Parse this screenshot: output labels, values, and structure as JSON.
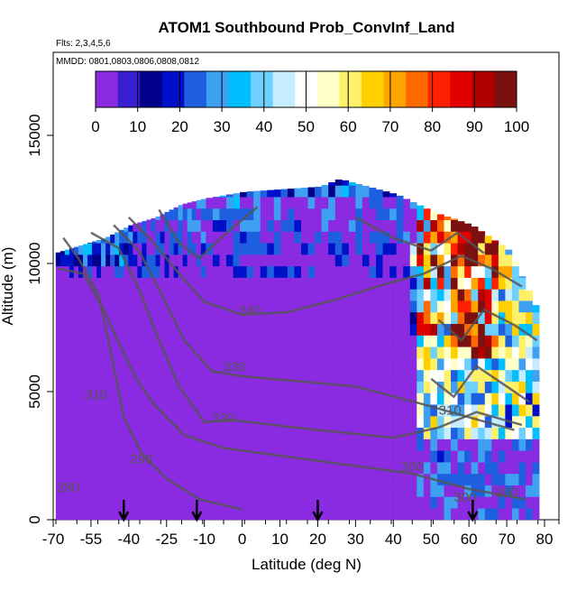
{
  "chart_data": {
    "type": "heatmap",
    "title": "ATOM1 Southbound Prob_ConvInf_Land",
    "subtitle_flights": "Flts: 2,3,4,5,6",
    "subtitle_dates": "MMDD: 0801,0803,0806,0808,0812",
    "xlabel": "Latitude (deg N)",
    "ylabel": "Altitude (m)",
    "xlim": [
      -70,
      80
    ],
    "ylim": [
      0,
      17000
    ],
    "x_ticks_major": [
      "-70",
      "-55",
      "-40",
      "-25",
      "-10",
      "0",
      "10",
      "20",
      "30",
      "40",
      "50",
      "60",
      "70",
      "80"
    ],
    "x_tick_values": [
      -70,
      -55,
      -40,
      -25,
      -10,
      0,
      10,
      20,
      30,
      40,
      50,
      60,
      70,
      80
    ],
    "y_ticks": [
      "0",
      "5000",
      "10000",
      "15000"
    ],
    "y_tick_values": [
      0,
      5000,
      10000,
      15000
    ],
    "colorbar": {
      "ticks": [
        "0",
        "10",
        "20",
        "30",
        "40",
        "50",
        "60",
        "70",
        "80",
        "90",
        "100"
      ],
      "range": [
        0,
        100
      ],
      "colors": [
        "#8a2be2",
        "#3a1fd0",
        "#00008b",
        "#0010c8",
        "#1e5fe0",
        "#3f9ff0",
        "#00bfff",
        "#6ed0ff",
        "#c6ecff",
        "#ffffff",
        "#ffffc8",
        "#fff06a",
        "#ffd000",
        "#ffa500",
        "#ff6a00",
        "#ff2000",
        "#e00000",
        "#b00000",
        "#7a1010"
      ]
    },
    "contours": [
      {
        "label": "280",
        "x": -64,
        "y": 1100
      },
      {
        "label": "290",
        "x": -35,
        "y": 2200
      },
      {
        "label": "300",
        "x": 45,
        "y": 1900
      },
      {
        "label": "300",
        "x": 59,
        "y": 700
      },
      {
        "label": "290",
        "x": 70,
        "y": 900
      },
      {
        "label": "310",
        "x": 55,
        "y": 4100
      },
      {
        "label": "320",
        "x": -5,
        "y": 3800
      },
      {
        "label": "330",
        "x": -2,
        "y": 5800
      },
      {
        "label": "340",
        "x": 2,
        "y": 8000
      },
      {
        "label": "310",
        "x": -53,
        "y": 4700
      }
    ],
    "flight_markers_lat": [
      -42,
      -13,
      20,
      61
    ],
    "data_extent": [
      {
        "lat": -70,
        "top": 10400
      },
      {
        "lat": -60,
        "top": 10700
      },
      {
        "lat": -50,
        "top": 11000
      },
      {
        "lat": -40,
        "top": 11500
      },
      {
        "lat": -30,
        "top": 11800
      },
      {
        "lat": -20,
        "top": 12300
      },
      {
        "lat": 0,
        "top": 12800
      },
      {
        "lat": 20,
        "top": 13000
      },
      {
        "lat": 25,
        "top": 13300
      },
      {
        "lat": 40,
        "top": 12700
      },
      {
        "lat": 50,
        "top": 12000
      },
      {
        "lat": 60,
        "top": 11500
      },
      {
        "lat": 70,
        "top": 10500
      },
      {
        "lat": 78,
        "top": 8000
      }
    ]
  }
}
